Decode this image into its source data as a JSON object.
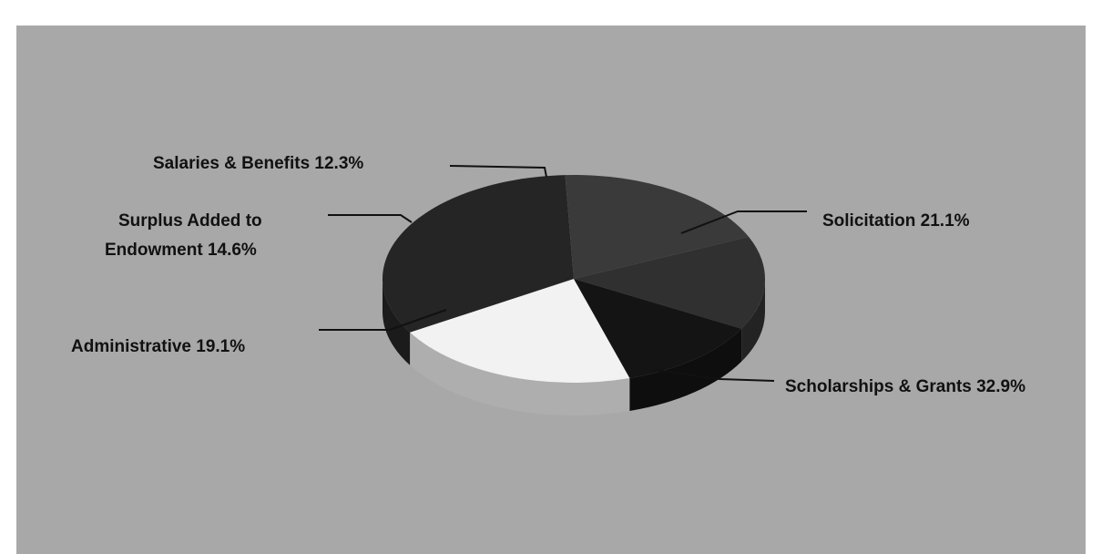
{
  "chart_data": {
    "type": "pie",
    "title": "",
    "slices": [
      {
        "label": "Solicitation",
        "value": 21.1,
        "display": "21.1%",
        "color": "#f2f2f2"
      },
      {
        "label": "Scholarships & Grants",
        "value": 32.9,
        "display": "32.9%",
        "color": "#252525"
      },
      {
        "label": "Administrative",
        "value": 19.1,
        "display": "19.1%",
        "color": "#3a3a3a"
      },
      {
        "label": "Surplus Added to Endowment",
        "value": 14.6,
        "display": "14.6%",
        "color": "#303030"
      },
      {
        "label": "Salaries & Benefits",
        "value": 12.3,
        "display": "12.3%",
        "color": "#141414"
      }
    ]
  },
  "labels": {
    "salaries": "Salaries & Benefits 12.3%",
    "surplus_line1": "Surplus Added to",
    "surplus_line2": "Endowment 14.6%",
    "administrative": "Administrative 19.1%",
    "solicitation": "Solicitation 21.1%",
    "scholarships": "Scholarships & Grants 32.9%"
  },
  "colors": {
    "background": "#a8a8a8",
    "leader_lines": "#111111"
  }
}
